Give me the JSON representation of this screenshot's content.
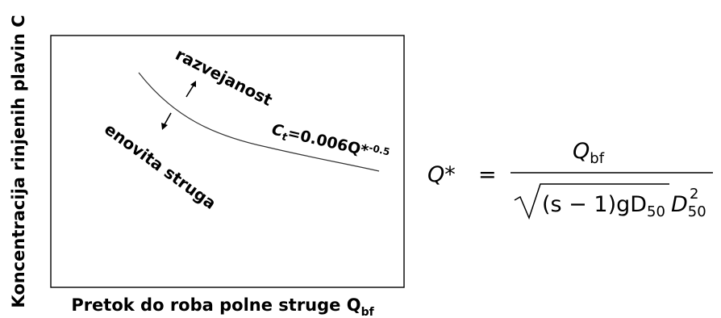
{
  "diagram": {
    "y_axis_label": "Koncentracija rinjenih plavin C",
    "x_axis_label": "Pretok do roba polne struge Q",
    "x_axis_label_sub": "bf",
    "label_up": "razvejanost",
    "label_down": "enovita struga",
    "curve_equation": {
      "lhs": "C",
      "lhs_sub": "t",
      "rhs": "=0.006Q*",
      "exponent": "-0.5"
    }
  },
  "formula": {
    "lhs": "Q*",
    "equals": "=",
    "numerator": "Q",
    "numerator_sub": "bf",
    "denominator_text": "(s − 1)gD",
    "d50_sub": "50",
    "trailing_var": "D",
    "trailing_sup": "2"
  }
}
